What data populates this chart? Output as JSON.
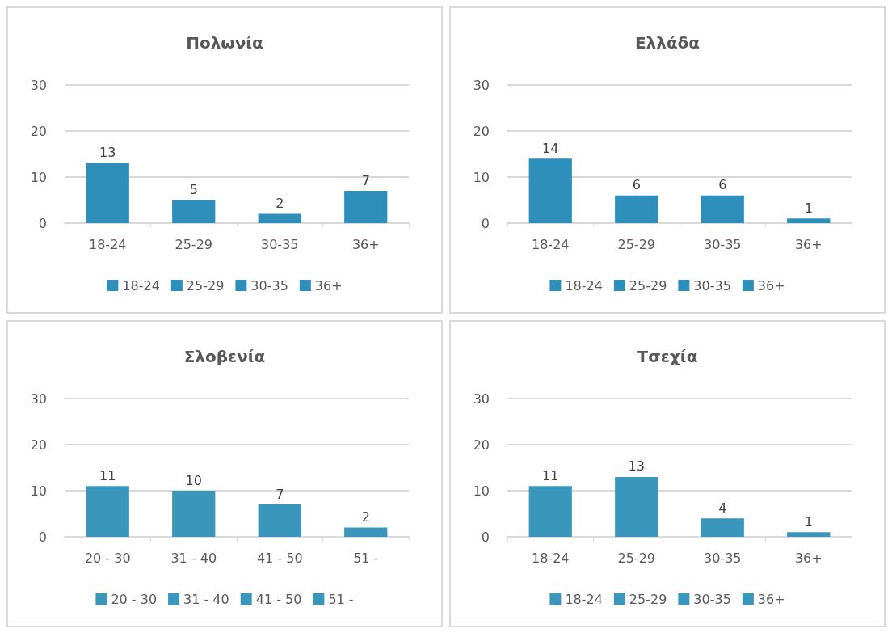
{
  "chart_data": [
    {
      "type": "bar",
      "title": "Πολωνία",
      "categories": [
        "18-24",
        "25-29",
        "30-35",
        "36+"
      ],
      "stacked": true,
      "series": [
        {
          "name": "18-24",
          "color": "#2e8fba",
          "values": [
            13,
            null,
            null,
            null
          ]
        },
        {
          "name": "25-29",
          "color": "#2e8fba",
          "values": [
            null,
            5,
            null,
            null
          ]
        },
        {
          "name": "30-35",
          "color": "#2e8fba",
          "values": [
            null,
            null,
            2,
            null
          ]
        },
        {
          "name": "36+",
          "color": "#2e8fba",
          "values": [
            null,
            null,
            null,
            7
          ]
        }
      ],
      "ylim": [
        0,
        30
      ],
      "yticks": [
        0,
        10,
        20,
        30
      ],
      "grid": "y",
      "data_labels": true,
      "legend": "bottom"
    },
    {
      "type": "bar",
      "title": "Ελλάδα",
      "categories": [
        "18-24",
        "25-29",
        "30-35",
        "36+"
      ],
      "stacked": true,
      "series": [
        {
          "name": "18-24",
          "color": "#2e8fba",
          "values": [
            14,
            null,
            null,
            null
          ]
        },
        {
          "name": "25-29",
          "color": "#2e8fba",
          "values": [
            null,
            6,
            null,
            null
          ]
        },
        {
          "name": "30-35",
          "color": "#2e8fba",
          "values": [
            null,
            null,
            6,
            null
          ]
        },
        {
          "name": "36+",
          "color": "#2e8fba",
          "values": [
            null,
            null,
            null,
            1
          ]
        }
      ],
      "ylim": [
        0,
        30
      ],
      "yticks": [
        0,
        10,
        20,
        30
      ],
      "grid": "y",
      "data_labels": true,
      "legend": "bottom"
    },
    {
      "type": "bar",
      "title": "Σλοβενία",
      "categories": [
        "20 - 30",
        "31 - 40",
        "41 - 50",
        "51 -"
      ],
      "stacked": true,
      "series": [
        {
          "name": "20 - 30",
          "color": "#3a96bb",
          "values": [
            11,
            null,
            null,
            null
          ]
        },
        {
          "name": "31 - 40",
          "color": "#3a96bb",
          "values": [
            null,
            10,
            null,
            null
          ]
        },
        {
          "name": "41 - 50",
          "color": "#3a96bb",
          "values": [
            null,
            null,
            7,
            null
          ]
        },
        {
          "name": "51 -",
          "color": "#3a96bb",
          "values": [
            null,
            null,
            null,
            2
          ]
        }
      ],
      "ylim": [
        0,
        30
      ],
      "yticks": [
        0,
        10,
        20,
        30
      ],
      "grid": "y",
      "data_labels": true,
      "legend": "bottom"
    },
    {
      "type": "bar",
      "title": "Τσεχία",
      "categories": [
        "18-24",
        "25-29",
        "30-35",
        "36+"
      ],
      "stacked": true,
      "series": [
        {
          "name": "18-24",
          "color": "#3a96bb",
          "values": [
            11,
            null,
            null,
            null
          ]
        },
        {
          "name": "25-29",
          "color": "#3a96bb",
          "values": [
            null,
            13,
            null,
            null
          ]
        },
        {
          "name": "30-35",
          "color": "#3a96bb",
          "values": [
            null,
            null,
            4,
            null
          ]
        },
        {
          "name": "36+",
          "color": "#3a96bb",
          "values": [
            null,
            null,
            null,
            1
          ]
        }
      ],
      "ylim": [
        0,
        30
      ],
      "yticks": [
        0,
        10,
        20,
        30
      ],
      "grid": "y",
      "data_labels": true,
      "legend": "bottom"
    }
  ]
}
